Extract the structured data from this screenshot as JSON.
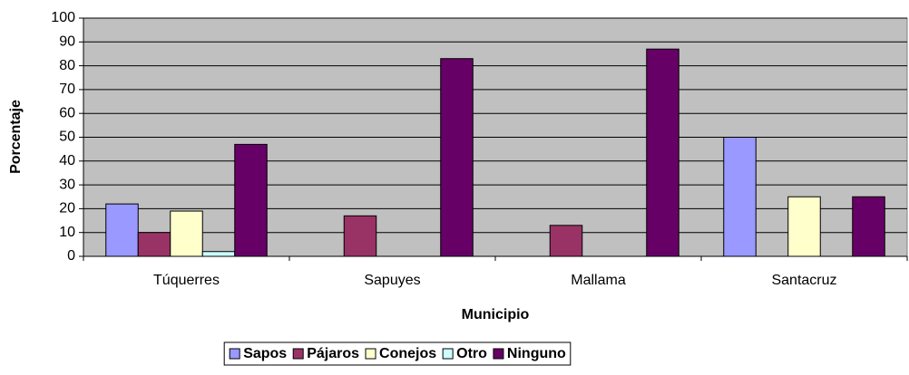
{
  "chart_data": {
    "type": "bar",
    "y_label": "Porcentaje",
    "x_label": "Municipio",
    "categories": [
      "Túquerres",
      "Sapuyes",
      "Mallama",
      "Santacruz"
    ],
    "series": [
      {
        "name": "Sapos",
        "color": "#9999ff",
        "values": [
          22,
          0,
          0,
          50
        ]
      },
      {
        "name": "Pájaros",
        "color": "#993366",
        "values": [
          10,
          17,
          13,
          0
        ]
      },
      {
        "name": "Conejos",
        "color": "#ffffcc",
        "values": [
          19,
          0,
          0,
          25
        ]
      },
      {
        "name": "Otro",
        "color": "#ccffff",
        "values": [
          2,
          0,
          0,
          0
        ]
      },
      {
        "name": "Ninguno",
        "color": "#660066",
        "values": [
          47,
          83,
          87,
          25
        ]
      }
    ],
    "ylim": [
      0,
      100
    ],
    "yticks": [
      0,
      10,
      20,
      30,
      40,
      50,
      60,
      70,
      80,
      90,
      100
    ],
    "grid": true,
    "plot_background": "#c0c0c0",
    "legend": "bottom"
  }
}
